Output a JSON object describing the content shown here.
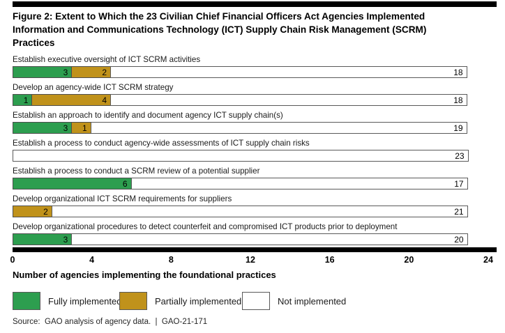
{
  "header": {
    "title_lines": [
      "Figure 2: Extent to Which the 23 Civilian Chief Financial Officers Act Agencies Implemented",
      "Information and Communications Technology (ICT) Supply Chain Risk Management (SCRM)",
      "Practices"
    ]
  },
  "chart_data": {
    "type": "bar",
    "orientation": "horizontal",
    "stacked": true,
    "title": "Figure 2: Extent to Which the 23 Civilian Chief Financial Officers Act Agencies Implemented Information and Communications Technology (ICT) Supply Chain Risk Management (SCRM) Practices",
    "xlabel": "Number of agencies implementing the foundational practices",
    "xlim": [
      0,
      24
    ],
    "xticks": [
      0,
      4,
      8,
      12,
      16,
      20,
      24
    ],
    "total_per_row": 23,
    "series_names": [
      "Fully implemented",
      "Partially implemented",
      "Not implemented"
    ],
    "rows": [
      {
        "label": "Establish executive oversight of ICT SCRM activities",
        "fully_implemented": 3,
        "partially_implemented": 2,
        "not_implemented": 18
      },
      {
        "label": "Develop an agency-wide ICT SCRM strategy",
        "fully_implemented": 1,
        "partially_implemented": 4,
        "not_implemented": 18
      },
      {
        "label": "Establish an approach to identify and document agency ICT supply chain(s)",
        "fully_implemented": 3,
        "partially_implemented": 1,
        "not_implemented": 19
      },
      {
        "label": "Establish a process to conduct agency-wide assessments of ICT supply chain risks",
        "fully_implemented": 0,
        "partially_implemented": 0,
        "not_implemented": 23
      },
      {
        "label": "Establish a process to conduct a SCRM review of a potential supplier",
        "fully_implemented": 6,
        "partially_implemented": 0,
        "not_implemented": 17
      },
      {
        "label": "Develop organizational ICT SCRM requirements for suppliers",
        "fully_implemented": 0,
        "partially_implemented": 2,
        "not_implemented": 21
      },
      {
        "label": "Develop organizational procedures to detect counterfeit and compromised ICT products prior to deployment",
        "fully_implemented": 3,
        "partially_implemented": 0,
        "not_implemented": 20
      }
    ]
  },
  "legend": {
    "items": [
      {
        "label": "Fully implemented",
        "color": "#2d9e4f",
        "key": "fully_implemented"
      },
      {
        "label": "Partially implemented",
        "color": "#c0921b",
        "key": "partially_implemented"
      },
      {
        "label": "Not implemented",
        "color": "#ffffff",
        "key": "not_implemented"
      }
    ]
  },
  "footer": {
    "source": "Source:  GAO analysis of agency data.  |  GAO-21-171"
  },
  "colors": {
    "fully_implemented": "#2d9e4f",
    "partially_implemented": "#c0921b",
    "not_implemented": "#ffffff",
    "rule": "#000000"
  }
}
